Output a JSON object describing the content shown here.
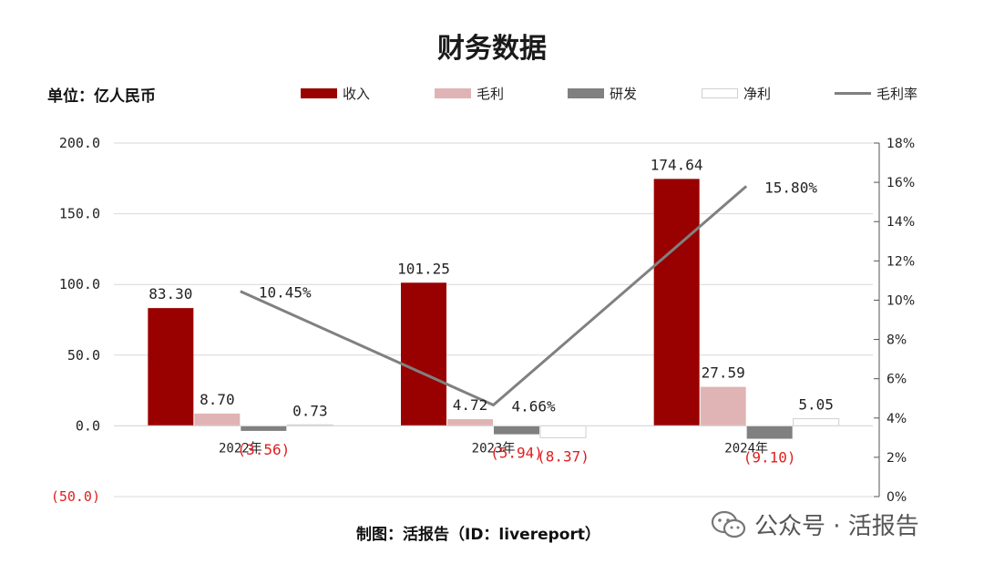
{
  "chart_data": {
    "type": "bar",
    "title": "财务数据",
    "unit_label": "单位：亿人民币",
    "categories": [
      "2022年",
      "2023年",
      "2024年"
    ],
    "series": [
      {
        "name": "收入",
        "values": [
          83.3,
          101.25,
          174.64
        ],
        "labels": [
          "83.30",
          "101.25",
          "174.64"
        ],
        "color": "#990000"
      },
      {
        "name": "毛利",
        "values": [
          8.7,
          4.72,
          27.59
        ],
        "labels": [
          "8.70",
          "4.72",
          "27.59"
        ],
        "color": "#e0b4b4"
      },
      {
        "name": "研发",
        "values": [
          -3.56,
          -5.94,
          -9.1
        ],
        "labels": [
          "(3.56)",
          "(5.94)",
          "(9.10)"
        ],
        "color": "#808080"
      },
      {
        "name": "净利",
        "values": [
          0.73,
          -8.37,
          5.05
        ],
        "labels": [
          "0.73",
          "(8.37)",
          "5.05"
        ],
        "color": "#ffffff"
      }
    ],
    "line_series": {
      "name": "毛利率",
      "values": [
        10.45,
        4.66,
        15.8
      ],
      "labels": [
        "10.45%",
        "4.66%",
        "15.80%"
      ],
      "color": "#808080"
    },
    "y_left": {
      "ylim": [
        -50,
        200
      ],
      "ticks": [
        200,
        150,
        100,
        50,
        0,
        -50
      ],
      "tick_labels": [
        "200.0",
        "150.0",
        "100.0",
        "50.0",
        "0.0",
        "(50.0)"
      ]
    },
    "y_right": {
      "ylim": [
        0,
        18
      ],
      "ticks": [
        18,
        16,
        14,
        12,
        10,
        8,
        6,
        4,
        2,
        0
      ],
      "tick_labels": [
        "18%",
        "16%",
        "14%",
        "12%",
        "10%",
        "8%",
        "6%",
        "4%",
        "2%",
        "0%"
      ]
    },
    "grid": true,
    "legend_position": "top"
  },
  "footer": {
    "source": "制图：活报告（ID：livereport）",
    "watermark": "公众号 · 活报告",
    "watermark_icon": "wechat-icon"
  }
}
